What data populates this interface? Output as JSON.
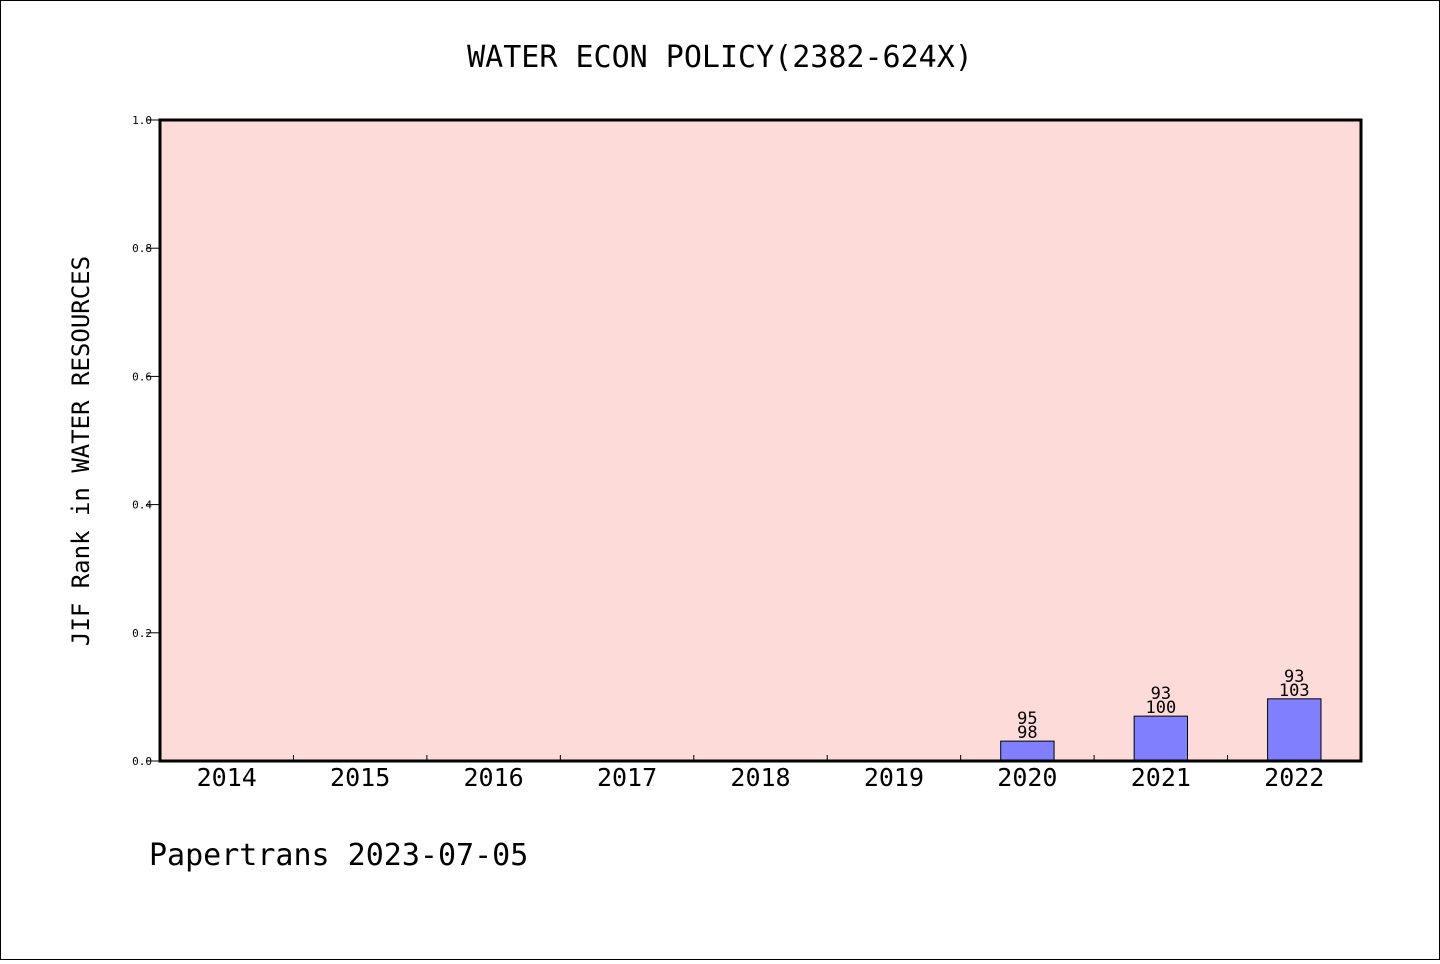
{
  "chart_data": {
    "type": "bar",
    "title": "WATER ECON POLICY(2382-624X)",
    "ylabel": "JIF Rank in WATER RESOURCES",
    "xlabel": "",
    "categories": [
      "2014",
      "2015",
      "2016",
      "2017",
      "2018",
      "2019",
      "2020",
      "2021",
      "2022"
    ],
    "values": [
      null,
      null,
      null,
      null,
      null,
      null,
      0.031,
      0.07,
      0.097
    ],
    "bar_labels": [
      null,
      null,
      null,
      null,
      null,
      null,
      {
        "top": "95",
        "bottom": "98"
      },
      {
        "top": "93",
        "bottom": "100"
      },
      {
        "top": "93",
        "bottom": "103"
      }
    ],
    "ylim": [
      0,
      1.0
    ],
    "yticks": [
      "0.0",
      "0.2",
      "0.4",
      "0.6",
      "0.8",
      "1.0"
    ],
    "grid": false,
    "colors": {
      "plot_background": "#fddbd8",
      "bar_fill": "#8080ff",
      "bar_stroke": "#000000"
    }
  },
  "footer": {
    "source_text": "Papertrans 2023-07-05"
  }
}
